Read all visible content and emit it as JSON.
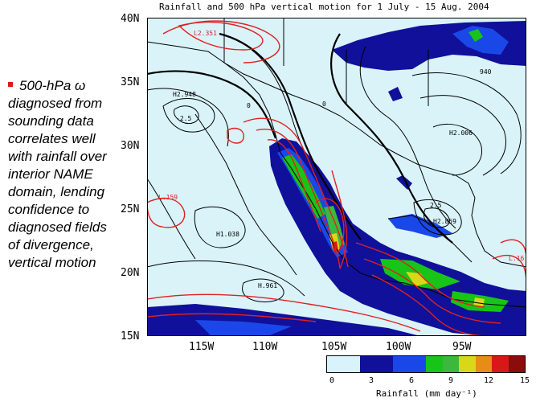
{
  "title": "Rainfall and 500 hPa vertical motion for 1 July - 15 Aug. 2004",
  "bullet": {
    "text": "500-hPa ω diagnosed from sounding data correlates well with rainfall over interior NAME domain, lending confidence to diagnosed fields of divergence, vertical motion",
    "lines": [
      "500-hPa ω",
      "diagnosed from",
      "sounding data",
      "correlates well",
      "with rainfall over",
      "interior NAME",
      "domain, lending",
      "confidence to",
      "diagnosed fields",
      "of divergence,",
      "vertical motion"
    ],
    "bullet_color": "#e01818"
  },
  "map": {
    "lat_ticks": [
      "40N",
      "35N",
      "30N",
      "25N",
      "20N",
      "15N"
    ],
    "lon_ticks": [
      "115W",
      "110W",
      "105W",
      "100W",
      "95W"
    ],
    "lat_range": [
      15,
      40
    ],
    "lon_range": [
      -120,
      -90
    ],
    "contour_labels": [
      {
        "text": "L2.351",
        "color": "red"
      },
      {
        "text": "H2.948",
        "color": "black"
      },
      {
        "text": "-2.5",
        "color": "black"
      },
      {
        "text": "0",
        "color": "black"
      },
      {
        "text": "H2.006",
        "color": "black"
      },
      {
        "text": "L.159",
        "color": "red"
      },
      {
        "text": "H1.038",
        "color": "black"
      },
      {
        "text": "2.5",
        "color": "black"
      },
      {
        "text": "H2.859",
        "color": "black"
      },
      {
        "text": "H.961",
        "color": "black"
      },
      {
        "text": "L.16",
        "color": "red"
      },
      {
        "text": "940",
        "color": "black"
      }
    ]
  },
  "colorbar": {
    "ticks": [
      "0",
      "3",
      "6",
      "9",
      "12",
      "15"
    ],
    "colors": [
      "#d8f4fa",
      "#10109a",
      "#1a48e8",
      "#18c418",
      "#3cb83c",
      "#d8d818",
      "#e88c18",
      "#d81818",
      "#8c0c0c"
    ],
    "label": "Rainfall (mm day⁻¹)"
  }
}
